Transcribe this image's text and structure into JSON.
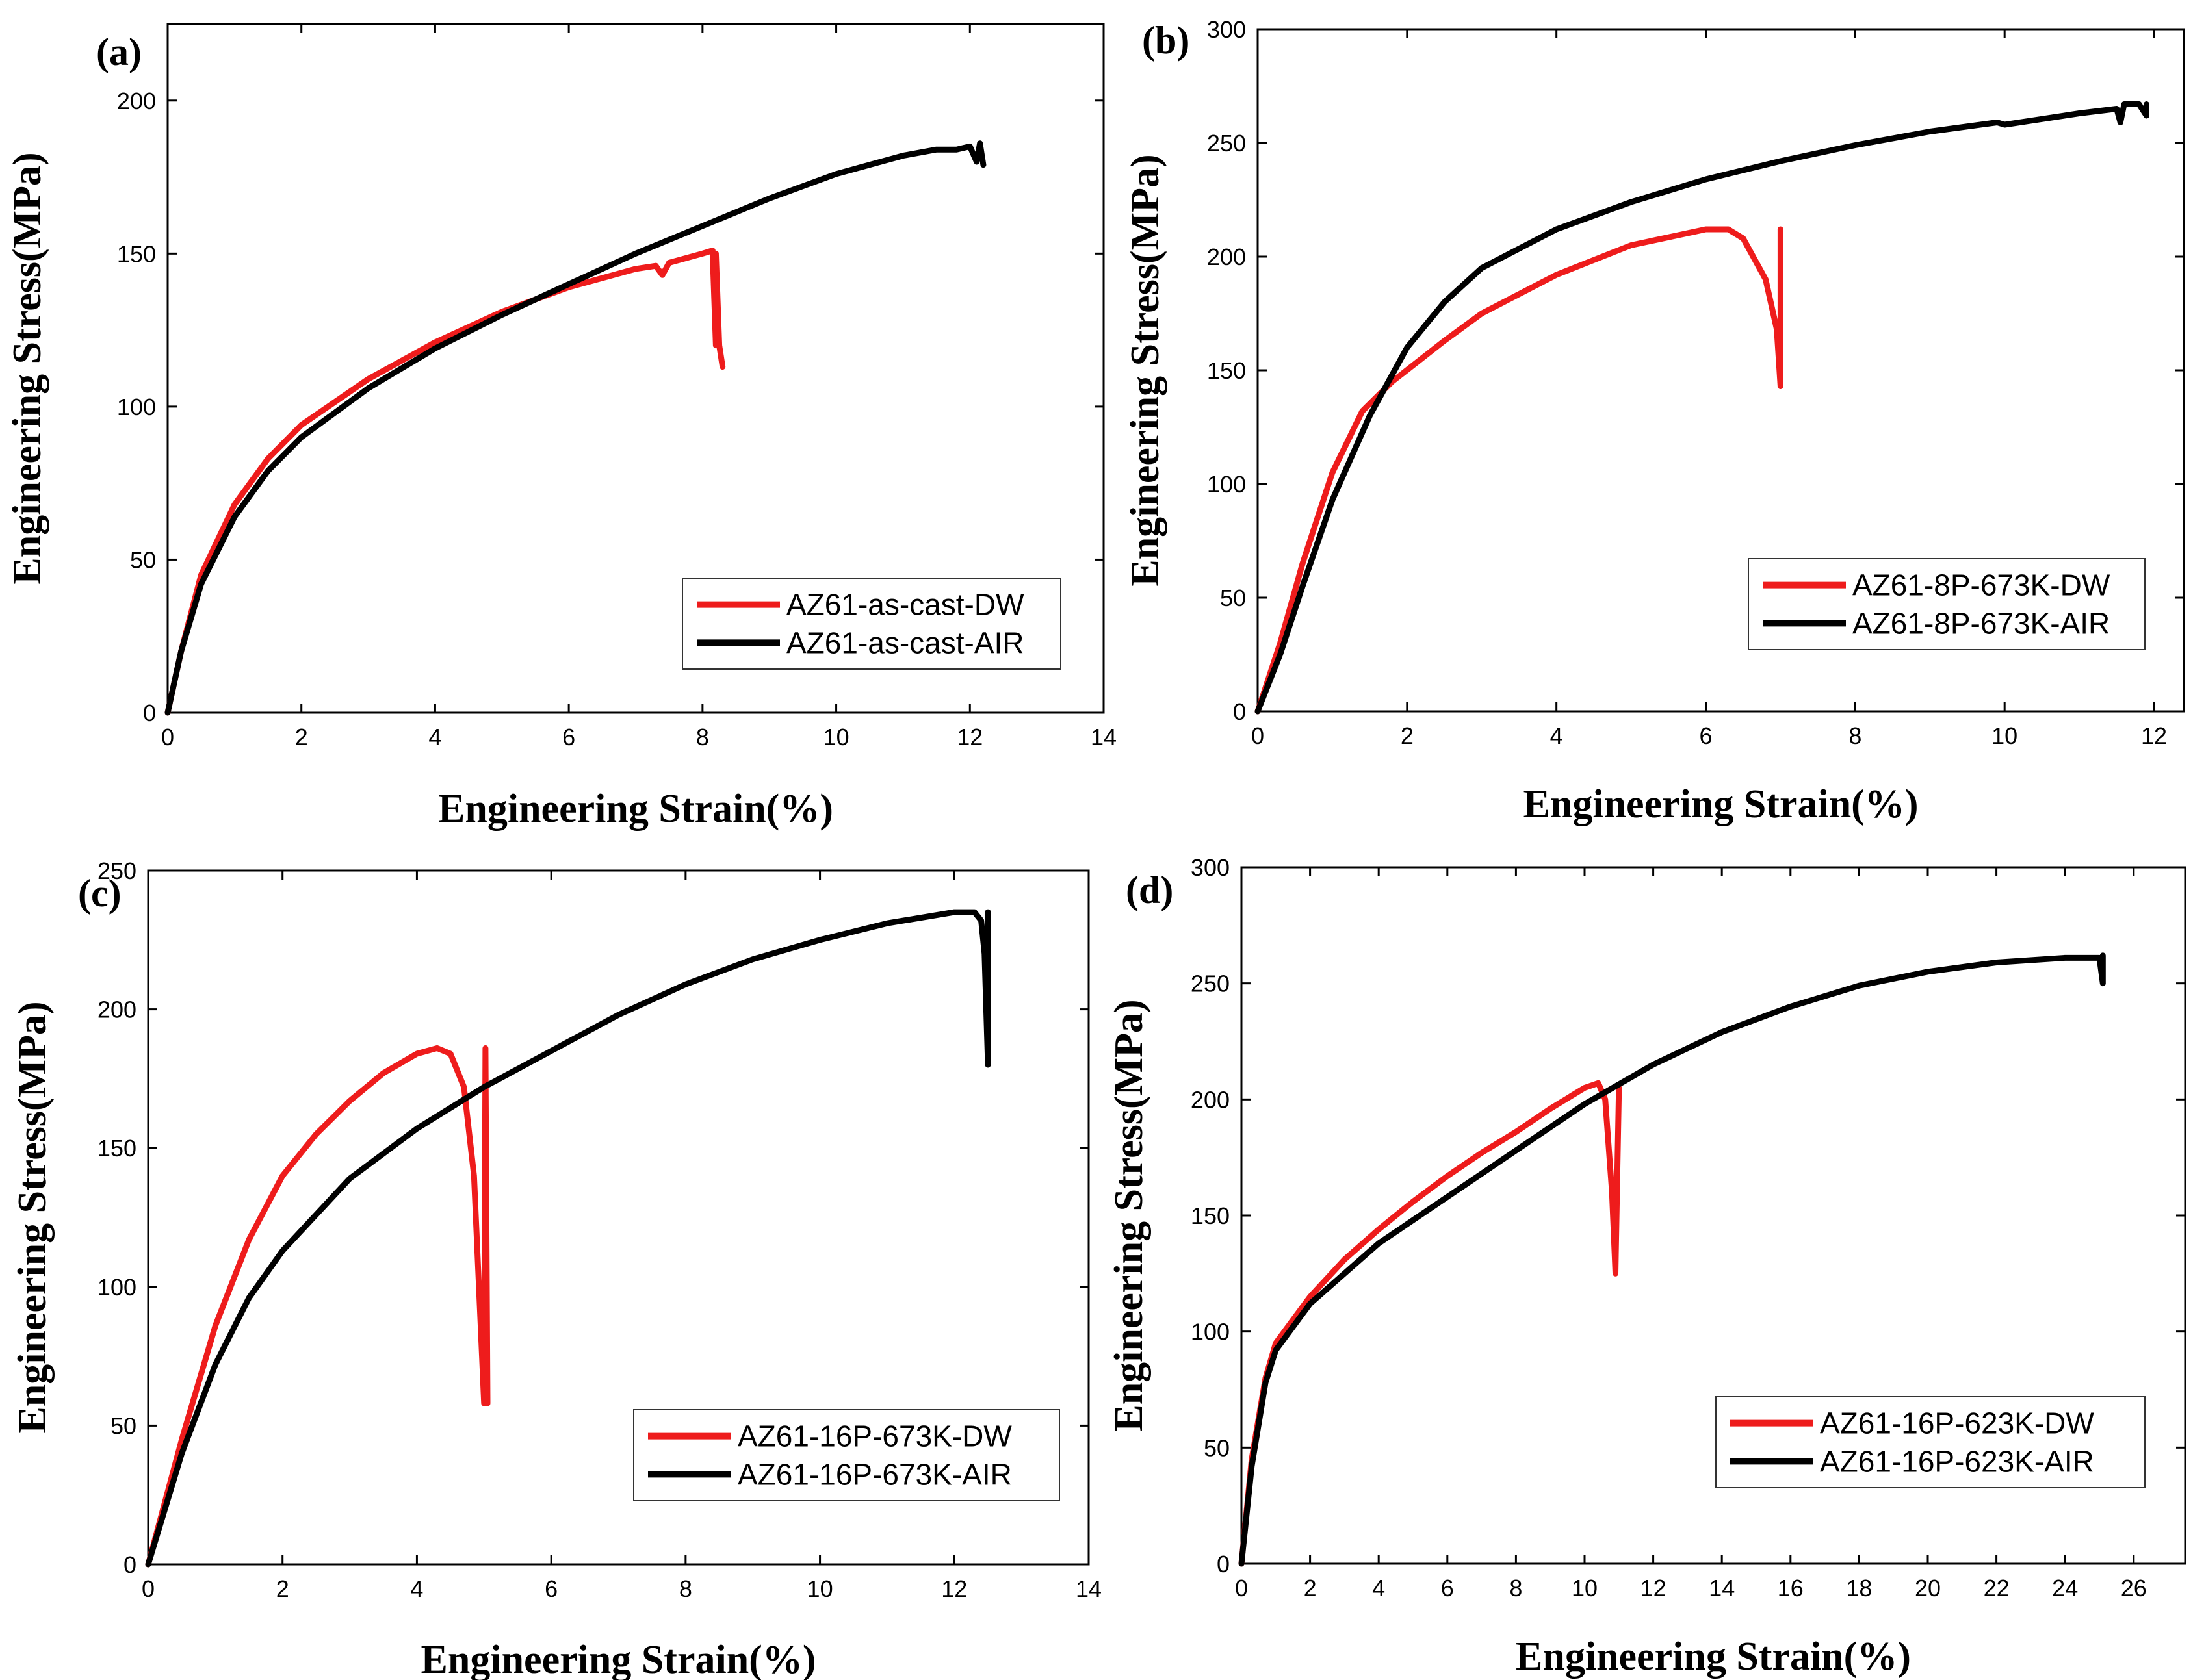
{
  "colors": {
    "dw": "#ee1c1c",
    "air": "#000000"
  },
  "chart_data": [
    {
      "type": "line",
      "panel_label": "(a)",
      "xlabel": "Engineering Strain(%)",
      "ylabel": "Engineering Stress(MPa)",
      "xlim": [
        0,
        14
      ],
      "ylim": [
        0,
        225
      ],
      "xticks": [
        0,
        2,
        4,
        6,
        8,
        10,
        12,
        14
      ],
      "yticks": [
        0,
        50,
        100,
        150,
        200
      ],
      "legend_position": "bottom-right",
      "series": [
        {
          "name": "AZ61-as-cast-DW",
          "color": "#ee1c1c",
          "x": [
            0,
            0.2,
            0.5,
            1,
            1.5,
            2,
            3,
            4,
            5,
            6,
            7,
            7.3,
            7.4,
            7.5,
            8,
            8.15,
            8.2,
            8.2,
            8.25,
            8.3
          ],
          "y": [
            0,
            20,
            45,
            68,
            83,
            94,
            109,
            121,
            131,
            139,
            145,
            146,
            143,
            147,
            150,
            151,
            120,
            150,
            120,
            113
          ]
        },
        {
          "name": "AZ61-as-cast-AIR",
          "color": "#000000",
          "x": [
            0,
            0.2,
            0.5,
            1,
            1.5,
            2,
            3,
            4,
            5,
            6,
            7,
            8,
            9,
            10,
            11,
            11.5,
            11.8,
            12,
            12.1,
            12.15,
            12.2
          ],
          "y": [
            0,
            20,
            42,
            64,
            79,
            90,
            106,
            119,
            130,
            140,
            150,
            159,
            168,
            176,
            182,
            184,
            184,
            185,
            180,
            186,
            179
          ]
        }
      ]
    },
    {
      "type": "line",
      "panel_label": "(b)",
      "xlabel": "Engineering Strain(%)",
      "ylabel": "Engineering Stress(MPa)",
      "xlim": [
        0,
        12.4
      ],
      "ylim": [
        0,
        300
      ],
      "xticks": [
        0,
        2,
        4,
        6,
        8,
        10,
        12
      ],
      "yticks": [
        0,
        50,
        100,
        150,
        200,
        250,
        300
      ],
      "legend_position": "bottom-right",
      "series": [
        {
          "name": "AZ61-8P-673K-DW",
          "color": "#ee1c1c",
          "x": [
            0,
            0.3,
            0.6,
            1,
            1.4,
            1.8,
            2.5,
            3,
            4,
            5,
            6,
            6.3,
            6.5,
            6.8,
            6.95,
            7,
            7,
            7
          ],
          "y": [
            0,
            30,
            65,
            105,
            132,
            145,
            163,
            175,
            192,
            205,
            212,
            212,
            208,
            190,
            168,
            143,
            212,
            143
          ]
        },
        {
          "name": "AZ61-8P-673K-AIR",
          "color": "#000000",
          "x": [
            0,
            0.3,
            0.6,
            1,
            1.5,
            2,
            2.5,
            3,
            4,
            5,
            6,
            7,
            8,
            9,
            9.9,
            10,
            11,
            11.5,
            11.55,
            11.6,
            11.8,
            11.9,
            11.9
          ],
          "y": [
            0,
            25,
            55,
            93,
            130,
            160,
            180,
            195,
            212,
            224,
            234,
            242,
            249,
            255,
            259,
            258,
            263,
            265,
            259,
            267,
            267,
            262,
            267
          ]
        }
      ]
    },
    {
      "type": "line",
      "panel_label": "(c)",
      "xlabel": "Engineering Strain(%)",
      "ylabel": "Engineering Stress(MPa)",
      "xlim": [
        0,
        14
      ],
      "ylim": [
        0,
        250
      ],
      "xticks": [
        0,
        2,
        4,
        6,
        8,
        10,
        12,
        14
      ],
      "yticks": [
        0,
        50,
        100,
        150,
        200,
        250
      ],
      "legend_position": "bottom-right",
      "series": [
        {
          "name": "AZ61-16P-673K-DW",
          "color": "#ee1c1c",
          "x": [
            0,
            0.5,
            1,
            1.5,
            2,
            2.5,
            3,
            3.5,
            4,
            4.3,
            4.5,
            4.7,
            4.85,
            5,
            5.02,
            5.05
          ],
          "y": [
            0,
            45,
            86,
            117,
            140,
            155,
            167,
            177,
            184,
            186,
            184,
            172,
            140,
            58,
            186,
            58
          ]
        },
        {
          "name": "AZ61-16P-673K-AIR",
          "color": "#000000",
          "x": [
            0,
            0.5,
            1,
            1.5,
            2,
            3,
            4,
            5,
            6,
            7,
            8,
            9,
            10,
            11,
            12,
            12.3,
            12.4,
            12.45,
            12.5,
            12.5
          ],
          "y": [
            0,
            40,
            72,
            96,
            113,
            139,
            157,
            172,
            185,
            198,
            209,
            218,
            225,
            231,
            235,
            235,
            232,
            220,
            180,
            235
          ]
        }
      ]
    },
    {
      "type": "line",
      "panel_label": "(d)",
      "xlabel": "Engineering Strain(%)",
      "ylabel": "Engineering Stress(MPa)",
      "xlim": [
        0,
        27.5
      ],
      "ylim": [
        0,
        300
      ],
      "xticks": [
        0,
        2,
        4,
        6,
        8,
        10,
        12,
        14,
        16,
        18,
        20,
        22,
        24,
        26
      ],
      "yticks": [
        0,
        50,
        100,
        150,
        200,
        250,
        300
      ],
      "legend_position": "bottom-right",
      "series": [
        {
          "name": "AZ61-16P-623K-DW",
          "color": "#ee1c1c",
          "x": [
            0,
            0.3,
            0.7,
            1,
            2,
            3,
            4,
            5,
            6,
            7,
            8,
            9,
            10,
            10.4,
            10.6,
            10.8,
            10.9,
            11
          ],
          "y": [
            0,
            45,
            80,
            95,
            115,
            131,
            144,
            156,
            167,
            177,
            186,
            196,
            205,
            207,
            200,
            160,
            125,
            205
          ]
        },
        {
          "name": "AZ61-16P-623K-AIR",
          "color": "#000000",
          "x": [
            0,
            0.3,
            0.7,
            1,
            2,
            4,
            6,
            8,
            10,
            12,
            14,
            16,
            18,
            20,
            22,
            24,
            25,
            25.1,
            25.1
          ],
          "y": [
            0,
            42,
            78,
            92,
            112,
            138,
            158,
            178,
            198,
            215,
            229,
            240,
            249,
            255,
            259,
            261,
            261,
            250,
            262
          ]
        }
      ]
    }
  ]
}
